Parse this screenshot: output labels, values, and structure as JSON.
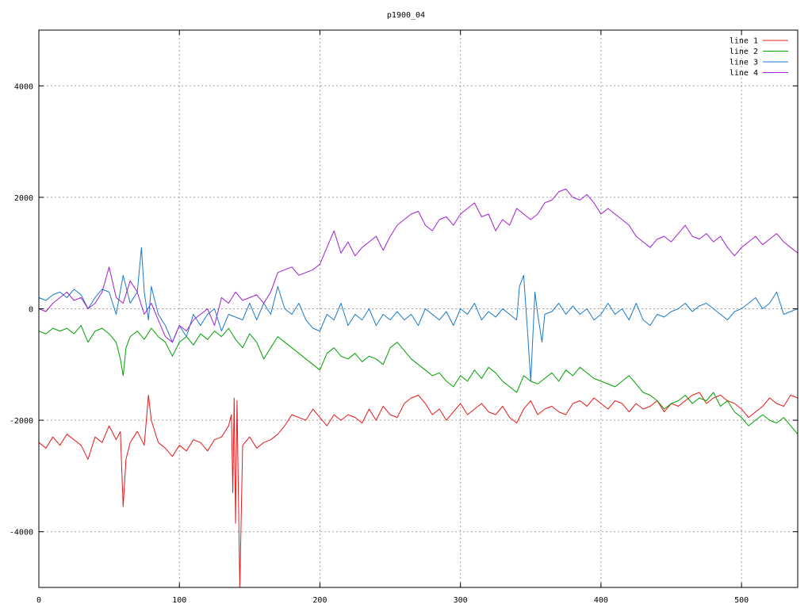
{
  "chart_data": {
    "type": "line",
    "title": "p1900_04",
    "xlabel": "",
    "ylabel": "",
    "xlim": [
      0,
      540
    ],
    "ylim": [
      -5000,
      5000
    ],
    "xticks": [
      0,
      100,
      200,
      300,
      400,
      500
    ],
    "yticks": [
      -4000,
      -2000,
      0,
      2000,
      4000
    ],
    "xtick_labels": [
      "0",
      "100",
      "200",
      "300",
      "400",
      "500"
    ],
    "ytick_labels": [
      "-4000",
      "-2000",
      "0",
      "2000",
      "4000"
    ],
    "grid": true,
    "legend_position": "top-right",
    "series": [
      {
        "name": "line 1",
        "color": "#e41a1c",
        "x": [
          0,
          5,
          10,
          15,
          20,
          25,
          30,
          35,
          40,
          45,
          50,
          55,
          58,
          60,
          62,
          65,
          70,
          75,
          78,
          80,
          85,
          90,
          95,
          100,
          105,
          110,
          115,
          120,
          125,
          130,
          135,
          137,
          138,
          139,
          140,
          141,
          143,
          145,
          150,
          155,
          160,
          165,
          170,
          175,
          180,
          185,
          190,
          195,
          200,
          205,
          210,
          215,
          220,
          225,
          230,
          235,
          240,
          245,
          250,
          255,
          260,
          265,
          270,
          275,
          280,
          285,
          290,
          295,
          300,
          305,
          310,
          315,
          320,
          325,
          330,
          335,
          340,
          345,
          350,
          355,
          360,
          365,
          370,
          375,
          380,
          385,
          390,
          395,
          400,
          405,
          410,
          415,
          420,
          425,
          430,
          435,
          440,
          445,
          450,
          455,
          460,
          465,
          470,
          475,
          480,
          485,
          490,
          495,
          500,
          505,
          510,
          515,
          520,
          525,
          530,
          535,
          540
        ],
        "y": [
          -2400,
          -2500,
          -2300,
          -2450,
          -2250,
          -2350,
          -2450,
          -2700,
          -2300,
          -2400,
          -2100,
          -2350,
          -2200,
          -3550,
          -2700,
          -2400,
          -2200,
          -2450,
          -1550,
          -2000,
          -2400,
          -2500,
          -2650,
          -2450,
          -2550,
          -2350,
          -2400,
          -2550,
          -2350,
          -2300,
          -2100,
          -1900,
          -3300,
          -1600,
          -3850,
          -1650,
          -5000,
          -2450,
          -2300,
          -2500,
          -2400,
          -2350,
          -2250,
          -2100,
          -1900,
          -1950,
          -2000,
          -1800,
          -1950,
          -2100,
          -1900,
          -2000,
          -1900,
          -1950,
          -2050,
          -1800,
          -2000,
          -1750,
          -1900,
          -1950,
          -1700,
          -1600,
          -1550,
          -1700,
          -1900,
          -1800,
          -2000,
          -1850,
          -1700,
          -1900,
          -1800,
          -1700,
          -1850,
          -1900,
          -1750,
          -1950,
          -2050,
          -1800,
          -1650,
          -1900,
          -1800,
          -1750,
          -1850,
          -1900,
          -1700,
          -1650,
          -1750,
          -1600,
          -1700,
          -1800,
          -1650,
          -1700,
          -1850,
          -1700,
          -1800,
          -1750,
          -1650,
          -1850,
          -1700,
          -1750,
          -1650,
          -1550,
          -1500,
          -1700,
          -1600,
          -1550,
          -1650,
          -1700,
          -1800,
          -1950,
          -1850,
          -1750,
          -1600,
          -1700,
          -1750,
          -1550,
          -1600
        ]
      },
      {
        "name": "line 2",
        "color": "#00a000",
        "x": [
          0,
          5,
          10,
          15,
          20,
          25,
          30,
          35,
          40,
          45,
          50,
          55,
          58,
          60,
          62,
          65,
          70,
          75,
          80,
          85,
          90,
          95,
          100,
          105,
          110,
          115,
          120,
          125,
          130,
          135,
          140,
          145,
          150,
          155,
          160,
          165,
          170,
          175,
          180,
          185,
          190,
          195,
          200,
          205,
          210,
          215,
          220,
          225,
          230,
          235,
          240,
          245,
          250,
          255,
          260,
          265,
          270,
          275,
          280,
          285,
          290,
          295,
          300,
          305,
          310,
          315,
          320,
          325,
          330,
          335,
          340,
          345,
          350,
          355,
          360,
          365,
          370,
          375,
          380,
          385,
          390,
          395,
          400,
          405,
          410,
          415,
          420,
          425,
          430,
          435,
          440,
          445,
          450,
          455,
          460,
          465,
          470,
          475,
          480,
          485,
          490,
          495,
          500,
          505,
          510,
          515,
          520,
          525,
          530,
          535,
          540
        ],
        "y": [
          -400,
          -450,
          -350,
          -400,
          -350,
          -450,
          -300,
          -600,
          -400,
          -350,
          -450,
          -600,
          -900,
          -1200,
          -700,
          -500,
          -400,
          -550,
          -350,
          -500,
          -600,
          -850,
          -600,
          -500,
          -650,
          -450,
          -550,
          -400,
          -500,
          -350,
          -550,
          -700,
          -450,
          -600,
          -900,
          -700,
          -500,
          -600,
          -700,
          -800,
          -900,
          -1000,
          -1100,
          -800,
          -700,
          -850,
          -900,
          -800,
          -950,
          -850,
          -900,
          -1000,
          -700,
          -600,
          -750,
          -900,
          -1000,
          -1100,
          -1200,
          -1150,
          -1300,
          -1400,
          -1200,
          -1300,
          -1100,
          -1250,
          -1050,
          -1150,
          -1300,
          -1400,
          -1500,
          -1200,
          -1300,
          -1350,
          -1250,
          -1150,
          -1300,
          -1100,
          -1200,
          -1050,
          -1150,
          -1250,
          -1300,
          -1350,
          -1400,
          -1300,
          -1200,
          -1350,
          -1500,
          -1550,
          -1650,
          -1800,
          -1700,
          -1650,
          -1550,
          -1700,
          -1600,
          -1650,
          -1500,
          -1750,
          -1650,
          -1850,
          -1950,
          -2100,
          -2000,
          -1900,
          -2000,
          -2050,
          -1950,
          -2100,
          -2250
        ]
      },
      {
        "name": "line 3",
        "color": "#1a7ac9",
        "x": [
          0,
          5,
          10,
          15,
          20,
          25,
          30,
          35,
          40,
          45,
          50,
          55,
          60,
          65,
          70,
          73,
          75,
          78,
          80,
          85,
          90,
          95,
          100,
          105,
          110,
          115,
          120,
          125,
          130,
          135,
          140,
          145,
          150,
          155,
          160,
          165,
          170,
          175,
          180,
          185,
          190,
          195,
          200,
          205,
          210,
          215,
          220,
          225,
          230,
          235,
          240,
          245,
          250,
          255,
          260,
          265,
          270,
          275,
          280,
          285,
          290,
          295,
          300,
          305,
          310,
          315,
          320,
          325,
          330,
          335,
          340,
          342,
          345,
          348,
          350,
          353,
          355,
          358,
          360,
          365,
          370,
          375,
          380,
          385,
          390,
          395,
          400,
          405,
          410,
          415,
          420,
          425,
          430,
          435,
          440,
          445,
          450,
          455,
          460,
          465,
          470,
          475,
          480,
          485,
          490,
          495,
          500,
          505,
          510,
          515,
          520,
          525,
          530,
          535,
          540
        ],
        "y": [
          200,
          150,
          250,
          300,
          200,
          350,
          250,
          0,
          200,
          350,
          300,
          -100,
          600,
          100,
          300,
          1100,
          300,
          -200,
          400,
          -100,
          -300,
          -600,
          -300,
          -500,
          -100,
          -300,
          -100,
          0,
          -400,
          -100,
          -150,
          -200,
          100,
          -200,
          100,
          -100,
          400,
          0,
          -100,
          100,
          -200,
          -350,
          -400,
          -100,
          -200,
          100,
          -300,
          -100,
          -200,
          0,
          -300,
          -100,
          -200,
          -50,
          -200,
          -100,
          -300,
          0,
          -100,
          -200,
          -50,
          -300,
          0,
          -100,
          100,
          -200,
          -50,
          -150,
          0,
          -100,
          -200,
          400,
          600,
          -500,
          -1300,
          300,
          -100,
          -600,
          -100,
          -50,
          100,
          -100,
          50,
          -100,
          0,
          -200,
          -100,
          100,
          -100,
          0,
          -200,
          100,
          -200,
          -300,
          -100,
          -150,
          -50,
          0,
          100,
          -50,
          50,
          100,
          0,
          -100,
          -200,
          -50,
          0,
          100,
          200,
          0,
          100,
          300,
          -100,
          -50,
          0
        ]
      },
      {
        "name": "line 4",
        "color": "#a020d0",
        "x": [
          0,
          5,
          10,
          15,
          20,
          25,
          30,
          35,
          40,
          45,
          50,
          55,
          60,
          65,
          70,
          75,
          80,
          85,
          90,
          95,
          100,
          105,
          110,
          115,
          120,
          125,
          130,
          135,
          140,
          145,
          150,
          155,
          160,
          165,
          170,
          175,
          180,
          185,
          190,
          195,
          200,
          205,
          210,
          215,
          220,
          225,
          230,
          235,
          240,
          245,
          250,
          255,
          260,
          265,
          270,
          275,
          280,
          285,
          290,
          295,
          300,
          305,
          310,
          315,
          320,
          325,
          330,
          335,
          340,
          345,
          350,
          355,
          360,
          365,
          370,
          375,
          380,
          385,
          390,
          395,
          400,
          405,
          410,
          415,
          420,
          425,
          430,
          435,
          440,
          445,
          450,
          455,
          460,
          465,
          470,
          475,
          480,
          485,
          490,
          495,
          500,
          505,
          510,
          515,
          520,
          525,
          530,
          535,
          540
        ],
        "y": [
          0,
          -50,
          100,
          200,
          300,
          150,
          200,
          0,
          100,
          300,
          750,
          200,
          100,
          500,
          300,
          -100,
          100,
          -200,
          -500,
          -600,
          -300,
          -400,
          -200,
          -100,
          0,
          -300,
          200,
          100,
          300,
          150,
          200,
          250,
          100,
          300,
          650,
          700,
          750,
          600,
          650,
          700,
          800,
          1100,
          1400,
          1000,
          1200,
          950,
          1100,
          1200,
          1300,
          1050,
          1300,
          1500,
          1600,
          1700,
          1750,
          1500,
          1400,
          1600,
          1650,
          1500,
          1700,
          1800,
          1900,
          1650,
          1700,
          1400,
          1600,
          1500,
          1800,
          1700,
          1600,
          1700,
          1900,
          1950,
          2100,
          2150,
          2000,
          1950,
          2050,
          1900,
          1700,
          1800,
          1700,
          1600,
          1500,
          1300,
          1200,
          1100,
          1250,
          1300,
          1200,
          1350,
          1500,
          1300,
          1250,
          1350,
          1200,
          1300,
          1100,
          950,
          1100,
          1200,
          1300,
          1150,
          1250,
          1350,
          1200,
          1100,
          1000
        ]
      }
    ]
  }
}
